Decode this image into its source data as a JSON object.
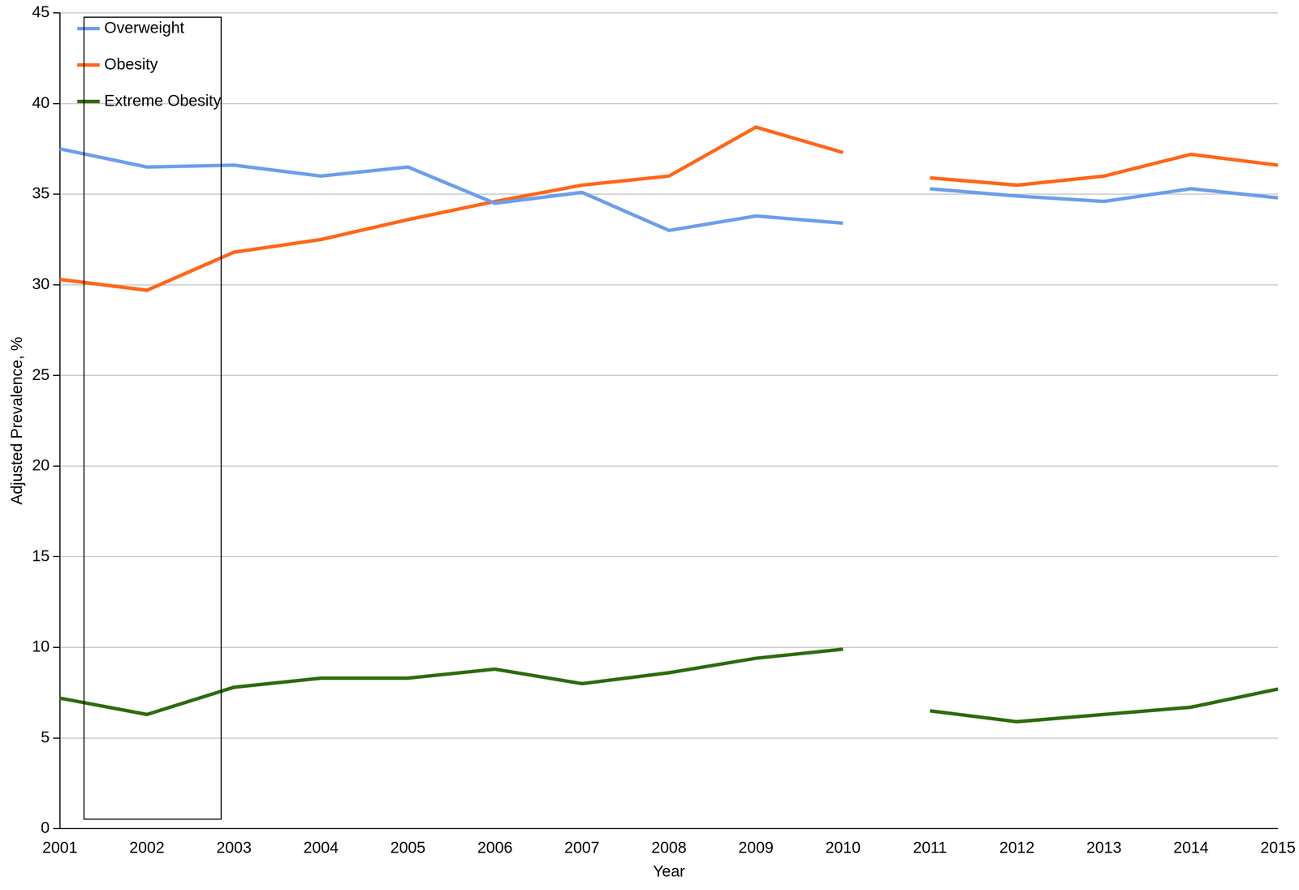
{
  "chart_data": {
    "type": "line",
    "x_label": "Year",
    "y_label": "Adjusted Prevalence, %",
    "categories": [
      "2001",
      "2002",
      "2003",
      "2004",
      "2005",
      "2006",
      "2007",
      "2008",
      "2009",
      "2010",
      "2011",
      "2012",
      "2013",
      "2014",
      "2015"
    ],
    "series": [
      {
        "name": "Overweight",
        "color": "#6d9eeb",
        "values": [
          37.5,
          36.5,
          36.6,
          36.0,
          36.5,
          34.5,
          35.1,
          33.0,
          33.8,
          33.4,
          null,
          null,
          null,
          null,
          null
        ]
      },
      {
        "name": "Overweight",
        "color": "#6d9eeb",
        "values": [
          null,
          null,
          null,
          null,
          null,
          null,
          null,
          null,
          null,
          null,
          35.3,
          34.9,
          34.6,
          35.3,
          34.8
        ]
      },
      {
        "name": "Obesity",
        "color": "#ff6619",
        "values": [
          30.3,
          29.7,
          31.8,
          32.5,
          33.6,
          34.6,
          35.5,
          36.0,
          38.7,
          37.3,
          null,
          null,
          null,
          null,
          null
        ]
      },
      {
        "name": "Obesity",
        "color": "#ff6619",
        "values": [
          null,
          null,
          null,
          null,
          null,
          null,
          null,
          null,
          null,
          null,
          35.9,
          35.5,
          36.0,
          37.2,
          36.6
        ]
      },
      {
        "name": "Extreme Obesity",
        "color": "#2e6b0e",
        "values": [
          7.2,
          6.3,
          7.8,
          8.3,
          8.3,
          8.8,
          8.0,
          8.6,
          9.4,
          9.9,
          null,
          null,
          null,
          null,
          null
        ]
      },
      {
        "name": "Extreme Obesity",
        "color": "#2e6b0e",
        "values": [
          null,
          null,
          null,
          null,
          null,
          null,
          null,
          null,
          null,
          null,
          6.5,
          5.9,
          6.3,
          6.7,
          7.7
        ]
      }
    ],
    "ylim": [
      0,
      45
    ],
    "yticks": [
      0,
      5,
      10,
      15,
      20,
      25,
      30,
      35,
      40,
      45
    ],
    "grid": true,
    "legend": "upper left"
  }
}
